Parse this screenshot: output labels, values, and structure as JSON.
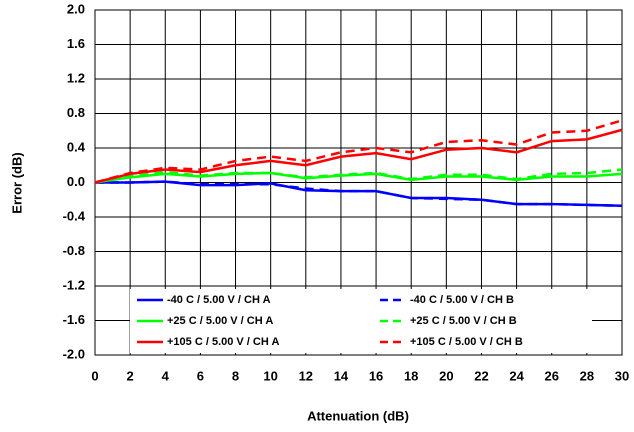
{
  "chart_data": {
    "type": "line",
    "xlabel": "Attenuation (dB)",
    "ylabel": "Error (dB)",
    "x": [
      0,
      2,
      4,
      6,
      8,
      10,
      12,
      14,
      16,
      18,
      20,
      22,
      24,
      26,
      28,
      30
    ],
    "xlim": [
      0,
      30
    ],
    "xticks": [
      0,
      2,
      4,
      6,
      8,
      10,
      12,
      14,
      16,
      18,
      20,
      22,
      24,
      26,
      28,
      30
    ],
    "ylim": [
      -2,
      2
    ],
    "yticks": [
      {
        "value": 2,
        "label": "2.0"
      },
      1.6,
      1.2,
      0.8,
      0.4,
      {
        "value": 0,
        "label": "0.0"
      },
      -0.4,
      -0.8,
      -1.2,
      -1.6,
      {
        "value": -2,
        "label": "-2.0"
      }
    ],
    "grid": true,
    "series": [
      {
        "name": "-40 C  / 5.00 V / CH A",
        "color": "#0000ff",
        "dash": false,
        "values": [
          0,
          0,
          0.01,
          -0.03,
          -0.03,
          -0.01,
          -0.09,
          -0.1,
          -0.1,
          -0.18,
          -0.18,
          -0.2,
          -0.25,
          -0.25,
          -0.26,
          -0.27
        ]
      },
      {
        "name": "-40 C  / 5.00 V / CH B",
        "color": "#0000ff",
        "dash": true,
        "values": [
          0,
          0,
          0.01,
          -0.02,
          -0.02,
          -0.02,
          -0.07,
          -0.1,
          -0.1,
          -0.18,
          -0.19,
          -0.2,
          -0.25,
          -0.25,
          -0.26,
          -0.27
        ]
      },
      {
        "name": "+25 C  / 5.00 V / CH A",
        "color": "#00ff00",
        "dash": false,
        "values": [
          0,
          0.06,
          0.1,
          0.07,
          0.1,
          0.11,
          0.05,
          0.08,
          0.1,
          0.03,
          0.07,
          0.07,
          0.03,
          0.07,
          0.07,
          0.1
        ]
      },
      {
        "name": "+25 C  / 5.00 V / CH B",
        "color": "#00ff00",
        "dash": true,
        "values": [
          0,
          0.07,
          0.12,
          0.08,
          0.11,
          0.11,
          0.06,
          0.09,
          0.11,
          0.04,
          0.09,
          0.09,
          0.04,
          0.1,
          0.11,
          0.15
        ]
      },
      {
        "name": "+105 C  / 5.00 V / CH A",
        "color": "#ff0000",
        "dash": false,
        "values": [
          0,
          0.1,
          0.15,
          0.12,
          0.2,
          0.25,
          0.2,
          0.3,
          0.34,
          0.27,
          0.38,
          0.4,
          0.35,
          0.48,
          0.5,
          0.61
        ]
      },
      {
        "name": "+105 C  / 5.00 V / CH B",
        "color": "#ff0000",
        "dash": true,
        "values": [
          0,
          0.11,
          0.17,
          0.15,
          0.25,
          0.3,
          0.25,
          0.35,
          0.4,
          0.35,
          0.47,
          0.49,
          0.44,
          0.58,
          0.6,
          0.72
        ]
      }
    ]
  }
}
